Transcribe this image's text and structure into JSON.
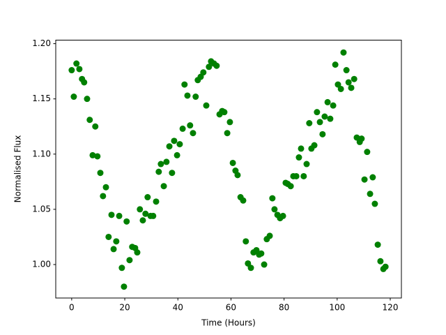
{
  "chart_data": {
    "type": "scatter",
    "x_label": "Time (Hours)",
    "y_label": "Normalised Flux",
    "color": "#008000",
    "x": [
      0,
      0.8,
      1.8,
      2.9,
      3.9,
      4.7,
      5.8,
      6.8,
      7.9,
      8.9,
      9.7,
      10.8,
      11.8,
      12.9,
      13.9,
      15.0,
      15.8,
      16.8,
      17.9,
      18.9,
      19.7,
      20.7,
      21.8,
      22.8,
      23.9,
      24.7,
      25.7,
      26.8,
      27.8,
      28.6,
      29.7,
      30.7,
      31.8,
      32.8,
      33.6,
      34.7,
      35.7,
      36.8,
      37.8,
      38.6,
      39.7,
      40.7,
      41.8,
      42.5,
      43.6,
      44.6,
      45.7,
      46.7,
      47.5,
      48.6,
      49.6,
      50.7,
      51.7,
      52.5,
      53.6,
      54.6,
      55.7,
      56.7,
      57.5,
      58.6,
      59.6,
      60.7,
      61.7,
      62.5,
      63.6,
      64.6,
      65.6,
      66.4,
      67.5,
      68.5,
      69.6,
      70.6,
      71.4,
      72.5,
      73.5,
      74.6,
      75.6,
      76.4,
      77.5,
      78.5,
      79.6,
      80.6,
      81.4,
      82.5,
      83.5,
      84.6,
      85.6,
      86.4,
      87.4,
      88.5,
      89.5,
      90.3,
      91.4,
      92.4,
      93.5,
      94.5,
      95.3,
      96.4,
      97.4,
      98.5,
      99.3,
      100.3,
      101.4,
      102.4,
      103.5,
      104.3,
      105.3,
      106.4,
      107.4,
      108.5,
      109.2,
      110.3,
      111.3,
      112.4,
      113.4,
      114.2,
      115.3,
      116.3,
      117.4,
      118.2
    ],
    "y": [
      1.176,
      1.152,
      1.182,
      1.177,
      1.168,
      1.165,
      1.15,
      1.131,
      1.099,
      1.125,
      1.098,
      1.083,
      1.062,
      1.07,
      1.025,
      1.045,
      1.014,
      1.021,
      1.044,
      0.997,
      0.98,
      1.039,
      1.004,
      1.016,
      1.015,
      1.011,
      1.05,
      1.04,
      1.046,
      1.061,
      1.044,
      1.044,
      1.057,
      1.084,
      1.091,
      1.071,
      1.093,
      1.107,
      1.083,
      1.112,
      1.099,
      1.109,
      1.123,
      1.163,
      1.153,
      1.126,
      1.119,
      1.152,
      1.167,
      1.17,
      1.174,
      1.144,
      1.179,
      1.184,
      1.182,
      1.18,
      1.136,
      1.139,
      1.138,
      1.119,
      1.129,
      1.092,
      1.085,
      1.081,
      1.061,
      1.058,
      1.021,
      1.001,
      0.997,
      1.011,
      1.013,
      1.009,
      1.01,
      1.0,
      1.023,
      1.026,
      1.06,
      1.05,
      1.045,
      1.042,
      1.044,
      1.074,
      1.073,
      1.071,
      1.08,
      1.08,
      1.097,
      1.105,
      1.08,
      1.091,
      1.128,
      1.105,
      1.108,
      1.138,
      1.129,
      1.118,
      1.134,
      1.147,
      1.132,
      1.144,
      1.181,
      1.163,
      1.159,
      1.192,
      1.176,
      1.165,
      1.16,
      1.168,
      1.115,
      1.111,
      1.114,
      1.077,
      1.102,
      1.064,
      1.079,
      1.055,
      1.018,
      1.003,
      0.996,
      0.998
    ],
    "xlim": [
      -6,
      124.2
    ],
    "ylim": [
      0.9697,
      1.2032
    ],
    "xticks": [
      0,
      20,
      40,
      60,
      80,
      100,
      120
    ],
    "yticks": [
      {
        "value": 1.0,
        "label": "1.00"
      },
      1.05,
      {
        "value": 1.1,
        "label": "1.10"
      },
      1.15,
      {
        "value": 1.2,
        "label": "1.20"
      }
    ]
  }
}
